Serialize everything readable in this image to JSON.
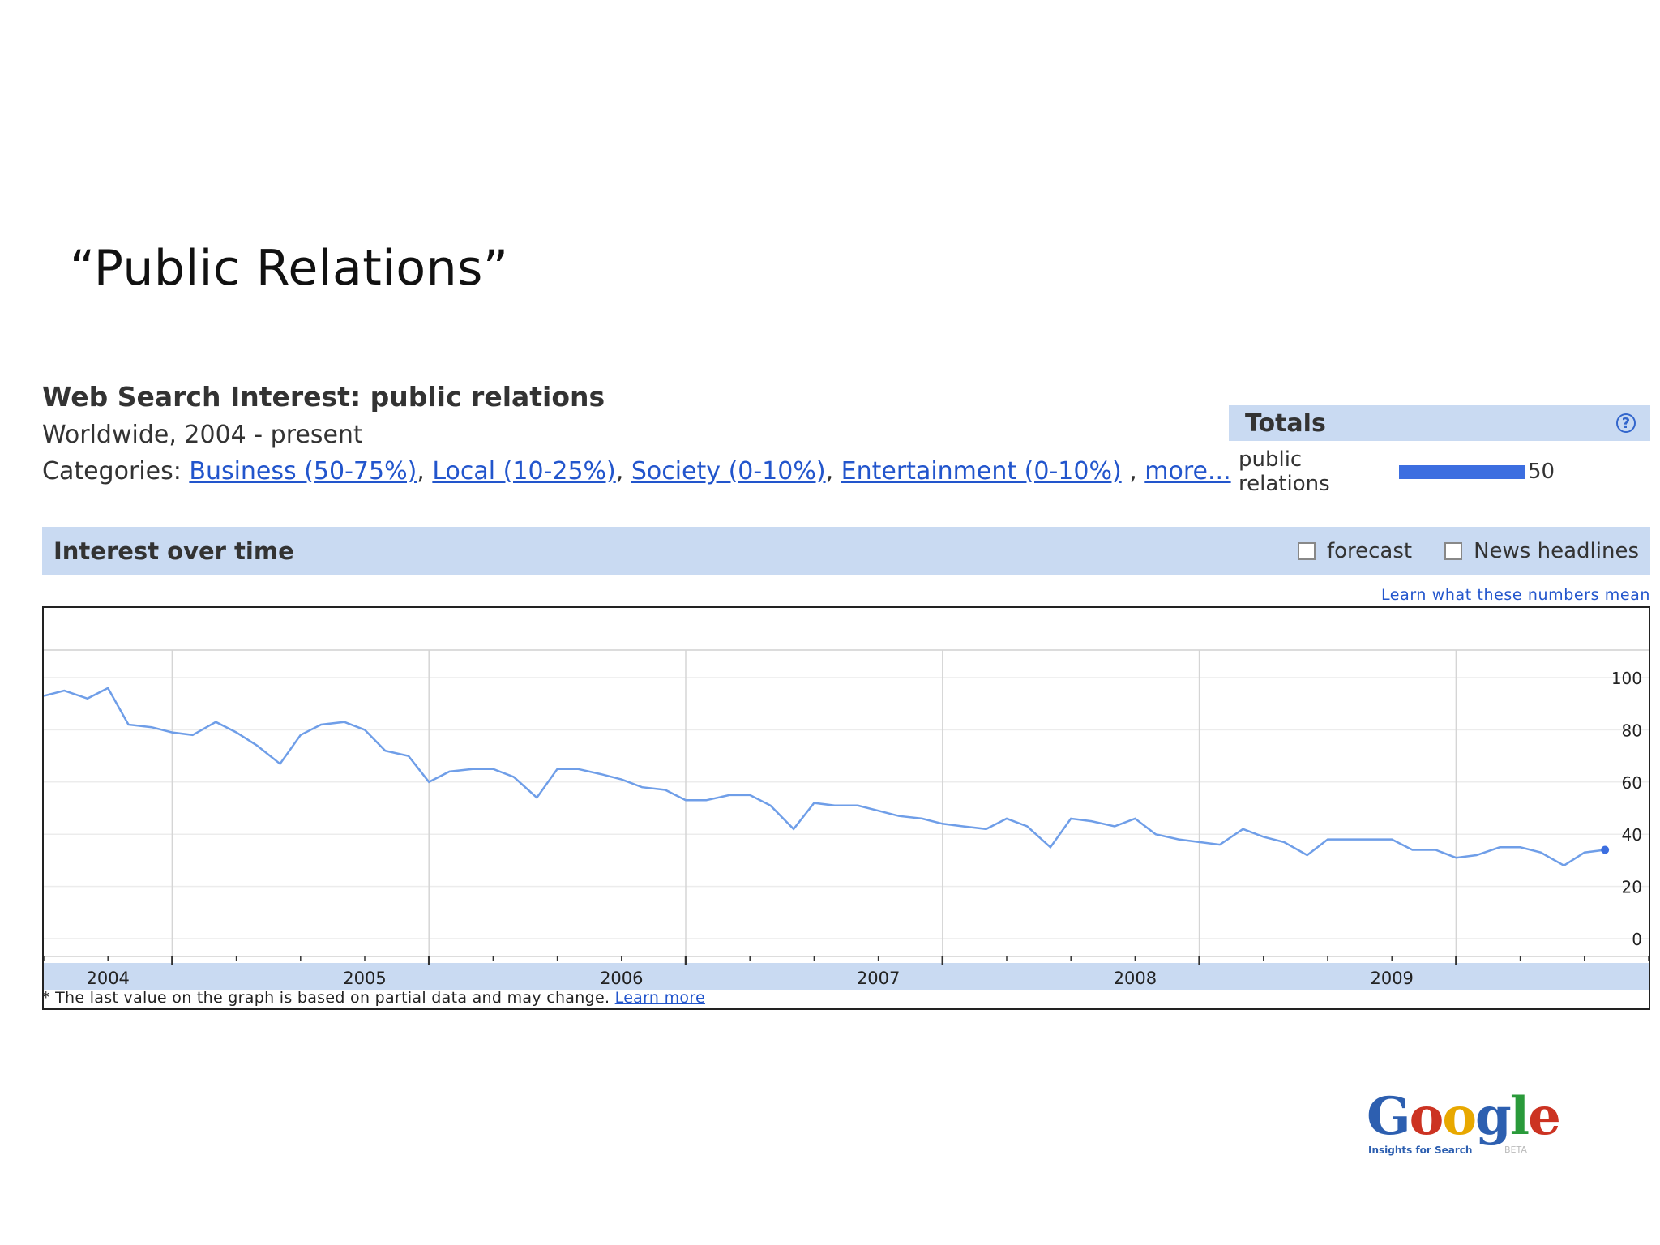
{
  "slide": {
    "title": "“Public Relations”"
  },
  "header": {
    "heading": "Web Search Interest: public relations",
    "subheading": "Worldwide, 2004 - present",
    "categories_label": "Categories:",
    "categories": [
      "Business (50-75%)",
      "Local (10-25%)",
      "Society (0-10%)",
      "Entertainment (0-10%)"
    ],
    "more_link": "more..."
  },
  "totals": {
    "label": "Totals",
    "help_icon": "?",
    "term": "public relations",
    "value": "50"
  },
  "interest_over_time": {
    "title": "Interest over time",
    "forecast_label": "forecast",
    "news_label": "News headlines",
    "learn_numbers_link": "Learn what these numbers mean"
  },
  "footnote": {
    "text": "* The last value on the graph is based on partial data and may change.",
    "link": "Learn more"
  },
  "logo": {
    "word": "Google",
    "tagline": "Insights for Search",
    "badge": "BETA"
  },
  "colors": {
    "line": "#6f9ee8",
    "accent_bar": "#c9daf2",
    "link": "#2255cc",
    "meter": "#3c6ee0"
  },
  "chart_data": {
    "type": "line",
    "x_labels": [
      "2004",
      "2005",
      "2006",
      "2007",
      "2008",
      "2009"
    ],
    "y_ticks": [
      0,
      20,
      40,
      60,
      80,
      100
    ],
    "ylim": [
      0,
      100
    ],
    "series": [
      {
        "name": "public relations",
        "x": [
          2004.0,
          2004.08,
          2004.17,
          2004.25,
          2004.33,
          2004.42,
          2004.5,
          2004.58,
          2004.67,
          2004.75,
          2004.83,
          2004.92,
          2005.0,
          2005.08,
          2005.17,
          2005.25,
          2005.33,
          2005.42,
          2005.5,
          2005.58,
          2005.67,
          2005.75,
          2005.83,
          2005.92,
          2006.0,
          2006.08,
          2006.17,
          2006.25,
          2006.33,
          2006.42,
          2006.5,
          2006.58,
          2006.67,
          2006.75,
          2006.83,
          2006.92,
          2007.0,
          2007.08,
          2007.17,
          2007.25,
          2007.33,
          2007.42,
          2007.5,
          2007.58,
          2007.67,
          2007.75,
          2007.83,
          2007.92,
          2008.0,
          2008.08,
          2008.17,
          2008.25,
          2008.33,
          2008.42,
          2008.5,
          2008.58,
          2008.67,
          2008.75,
          2008.83,
          2008.92,
          2009.0,
          2009.08,
          2009.17,
          2009.25,
          2009.33,
          2009.42,
          2009.5,
          2009.58,
          2009.67,
          2009.75,
          2009.83,
          2009.92,
          2010.0,
          2010.08
        ],
        "y": [
          93,
          95,
          92,
          96,
          82,
          81,
          79,
          78,
          83,
          79,
          74,
          67,
          78,
          82,
          83,
          80,
          72,
          70,
          60,
          64,
          65,
          65,
          62,
          54,
          65,
          65,
          63,
          61,
          58,
          57,
          53,
          53,
          55,
          55,
          51,
          42,
          52,
          51,
          51,
          49,
          47,
          46,
          44,
          43,
          42,
          46,
          43,
          35,
          46,
          45,
          43,
          46,
          40,
          38,
          37,
          36,
          42,
          39,
          37,
          32,
          38,
          38,
          38,
          38,
          34,
          34,
          31,
          32,
          35,
          35,
          33,
          28,
          33,
          34
        ]
      }
    ]
  }
}
